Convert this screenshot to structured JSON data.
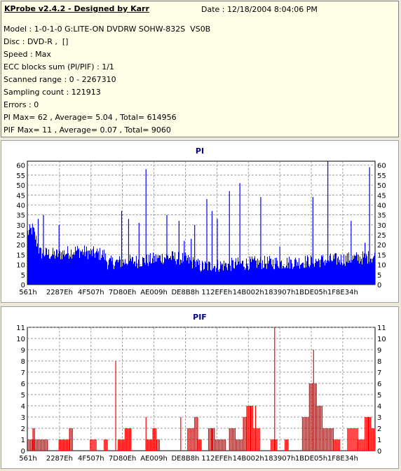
{
  "info": {
    "title": "KProbe v2.4.2 - Designed by Karr",
    "date": "Date : 12/18/2004 8:04:06 PM",
    "lines": [
      "Model : 1-0-1-0 G:LITE-ON DVDRW SOHW-832S  VS0B",
      "Disc : DVD-R ,  []",
      "Speed : Max",
      "ECC blocks sum (PI/PIF) : 1/1",
      "Scanned range : 0 - 2267310",
      "Sampling count : 121913",
      "Errors : 0",
      "PI Max= 62 , Average= 5.04 , Total= 614956",
      "PIF Max= 11 , Average= 0.07 , Total= 9060"
    ]
  },
  "colors": {
    "pi": "#0000ff",
    "pif": "#ff0000",
    "title": "#000080",
    "grid": "#808080"
  },
  "chart_data": [
    {
      "type": "bar",
      "title": "PI",
      "ylim": [
        0,
        62
      ],
      "yticks": [
        0,
        5,
        10,
        15,
        20,
        25,
        30,
        35,
        40,
        45,
        50,
        55,
        60
      ],
      "xticks": [
        "561h",
        "2287Eh",
        "4F507h",
        "7D80Eh",
        "AE009h",
        "DE8B8h",
        "112EFEh",
        "14B002h",
        "183907h",
        "1BDE05h",
        "1F8E34h"
      ],
      "grid": true,
      "baseline_profile": [
        [
          0,
          26
        ],
        [
          0.015,
          28
        ],
        [
          0.035,
          16
        ],
        [
          0.08,
          15
        ],
        [
          0.14,
          17
        ],
        [
          0.22,
          15
        ],
        [
          0.23,
          11
        ],
        [
          0.34,
          12
        ],
        [
          0.4,
          14
        ],
        [
          0.45,
          13
        ],
        [
          0.5,
          9
        ],
        [
          0.58,
          10
        ],
        [
          0.66,
          11
        ],
        [
          0.74,
          11
        ],
        [
          0.84,
          12
        ],
        [
          0.93,
          13
        ],
        [
          1.0,
          14
        ]
      ],
      "spikes": [
        [
          0.03,
          33
        ],
        [
          0.045,
          35
        ],
        [
          0.09,
          30
        ],
        [
          0.27,
          37
        ],
        [
          0.29,
          33
        ],
        [
          0.32,
          31
        ],
        [
          0.34,
          58
        ],
        [
          0.4,
          35
        ],
        [
          0.435,
          32
        ],
        [
          0.45,
          22
        ],
        [
          0.47,
          23
        ],
        [
          0.48,
          30
        ],
        [
          0.515,
          43
        ],
        [
          0.53,
          37
        ],
        [
          0.545,
          33
        ],
        [
          0.58,
          47
        ],
        [
          0.61,
          51
        ],
        [
          0.67,
          44
        ],
        [
          0.725,
          19
        ],
        [
          0.82,
          44
        ],
        [
          0.863,
          62
        ],
        [
          0.93,
          32
        ],
        [
          0.97,
          21
        ],
        [
          0.983,
          59
        ]
      ]
    },
    {
      "type": "bar",
      "title": "PIF",
      "ylim": [
        0,
        11
      ],
      "yticks": [
        0,
        1,
        2,
        3,
        4,
        5,
        6,
        7,
        8,
        9,
        10,
        11
      ],
      "xticks": [
        "561h",
        "2287Eh",
        "4F507h",
        "7D80Eh",
        "AE009h",
        "DE8B8h",
        "112EFEh",
        "14B002h",
        "183907h",
        "1BDE05h",
        "1F8E34h"
      ],
      "grid": true,
      "ranges": [
        [
          0.0,
          0.06,
          1
        ],
        [
          0.015,
          0.02,
          2
        ],
        [
          0.09,
          0.12,
          1
        ],
        [
          0.12,
          0.13,
          2
        ],
        [
          0.18,
          0.2,
          1
        ],
        [
          0.22,
          0.23,
          1
        ],
        [
          0.26,
          0.28,
          1
        ],
        [
          0.28,
          0.3,
          2
        ],
        [
          0.34,
          0.36,
          1
        ],
        [
          0.36,
          0.37,
          2
        ],
        [
          0.37,
          0.38,
          1
        ],
        [
          0.46,
          0.48,
          2
        ],
        [
          0.48,
          0.49,
          3
        ],
        [
          0.49,
          0.5,
          1
        ],
        [
          0.52,
          0.54,
          2
        ],
        [
          0.54,
          0.57,
          1
        ],
        [
          0.58,
          0.6,
          2
        ],
        [
          0.6,
          0.62,
          1
        ],
        [
          0.62,
          0.63,
          3
        ],
        [
          0.63,
          0.65,
          4
        ],
        [
          0.65,
          0.67,
          2
        ],
        [
          0.7,
          0.72,
          1
        ],
        [
          0.74,
          0.75,
          1
        ],
        [
          0.79,
          0.81,
          3
        ],
        [
          0.81,
          0.83,
          6
        ],
        [
          0.83,
          0.85,
          4
        ],
        [
          0.85,
          0.88,
          2
        ],
        [
          0.88,
          0.9,
          1
        ],
        [
          0.92,
          0.95,
          2
        ],
        [
          0.95,
          0.97,
          1
        ],
        [
          0.97,
          0.99,
          3
        ],
        [
          0.99,
          1.0,
          2
        ]
      ],
      "spikes": [
        [
          0.253,
          8
        ],
        [
          0.34,
          3
        ],
        [
          0.44,
          3
        ],
        [
          0.53,
          2
        ],
        [
          0.641,
          4
        ],
        [
          0.655,
          4
        ],
        [
          0.7,
          1
        ],
        [
          0.71,
          11
        ],
        [
          0.822,
          9
        ],
        [
          0.83,
          6
        ],
        [
          0.98,
          3
        ]
      ]
    }
  ]
}
